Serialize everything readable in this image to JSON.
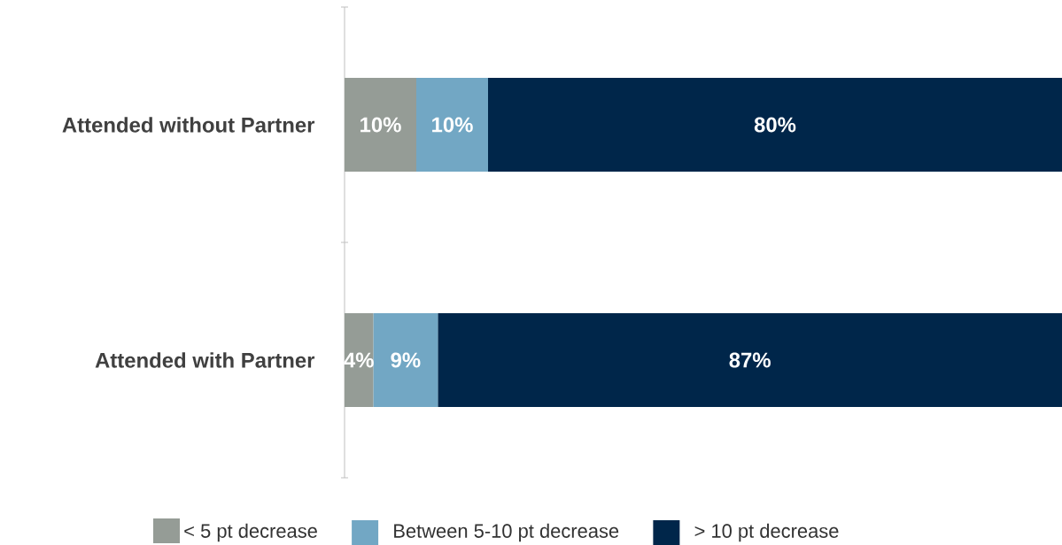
{
  "chart_data": {
    "type": "bar",
    "orientation": "horizontal",
    "stacked": true,
    "legend": "bottom",
    "categories": [
      "Attended without Partner",
      "Attended with Partner"
    ],
    "series": [
      {
        "name": "< 5 pt decrease",
        "color": "#959c96",
        "values": [
          10,
          4
        ],
        "value_labels": [
          "10%",
          "4%"
        ]
      },
      {
        "name": "Between 5-10 pt decrease",
        "color": "#72a7c4",
        "values": [
          10,
          9
        ],
        "value_labels": [
          "10%",
          "9%"
        ]
      },
      {
        "name": "> 10 pt decrease",
        "color": "#00264a",
        "values": [
          80,
          87
        ],
        "value_labels": [
          "80%",
          "87%"
        ]
      }
    ]
  }
}
